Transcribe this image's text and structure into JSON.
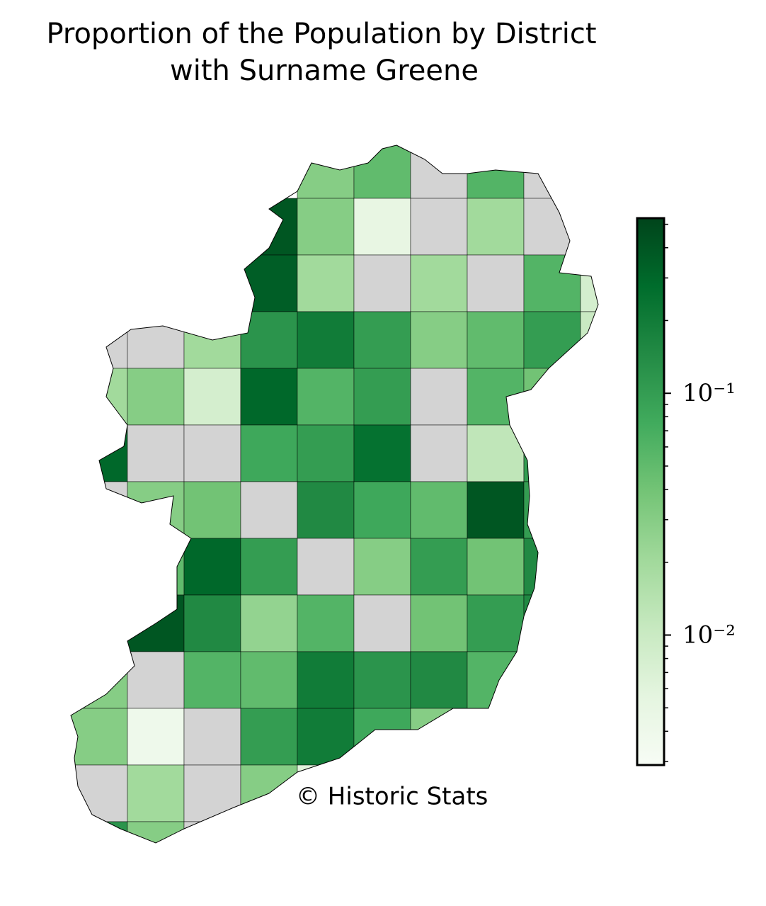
{
  "title": [
    "Proportion of the Population by District",
    "with Surname Greene"
  ],
  "credit": "© Historic Stats",
  "colorbar": {
    "scale": "log",
    "colormap": "Greens",
    "missing_color": "#d3d3d3",
    "clim": [
      0.0029,
      0.53
    ],
    "ticks": [
      {
        "value": 0.01,
        "label": "10⁻²"
      },
      {
        "value": 0.1,
        "label": "10⁻¹"
      }
    ],
    "minor_ticks": [
      0.003,
      0.004,
      0.005,
      0.006,
      0.007,
      0.008,
      0.009,
      0.02,
      0.03,
      0.04,
      0.05,
      0.06,
      0.07,
      0.08,
      0.09,
      0.2,
      0.3,
      0.4,
      0.5
    ]
  },
  "district_values": [
    0.03,
    0.05,
    null,
    0.06,
    null,
    0.4,
    0.03,
    0.005,
    null,
    0.02,
    null,
    0.35,
    0.02,
    null,
    0.02,
    null,
    0.06,
    0.008,
    null,
    null,
    0.02,
    0.12,
    0.2,
    0.1,
    0.03,
    0.05,
    0.1,
    0.01,
    0.02,
    0.03,
    0.008,
    0.3,
    0.06,
    0.1,
    null,
    0.06,
    0.04,
    0.3,
    null,
    null,
    0.08,
    0.1,
    0.25,
    null,
    0.012,
    0.1,
    null,
    0.03,
    0.04,
    null,
    0.15,
    0.08,
    0.05,
    0.4,
    0.1,
    0.05,
    0.3,
    0.1,
    null,
    0.03,
    0.1,
    0.04,
    0.15,
    0.4,
    0.15,
    0.025,
    0.06,
    null,
    0.04,
    0.1,
    0.15,
    0.03,
    null,
    0.06,
    0.05,
    0.2,
    0.12,
    0.15,
    0.06,
    0.03,
    0.004,
    null,
    0.1,
    0.2,
    0.08,
    0.03,
    null,
    0.02,
    null,
    0.03,
    0.006,
    0.12,
    0.03,
    null
  ]
}
